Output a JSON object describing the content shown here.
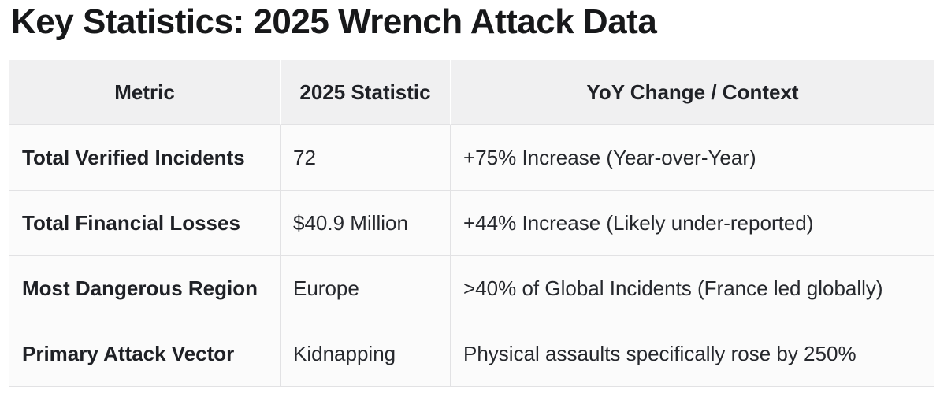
{
  "page": {
    "title": "Key Statistics: 2025 Wrench Attack Data"
  },
  "colors": {
    "page_bg": "#ffffff",
    "header_bg": "#f0f0f1",
    "row_bg": "#fbfbfb",
    "border": "#e2e2e4",
    "text_dark": "#1f2126"
  },
  "table": {
    "columns": [
      "Metric",
      "2025 Statistic",
      "YoY Change / Context"
    ],
    "rows": [
      {
        "metric": "Total Verified Incidents",
        "statistic": "72",
        "context": "+75% Increase (Year-over-Year)"
      },
      {
        "metric": "Total Financial Losses",
        "statistic": "$40.9 Million",
        "context": "+44% Increase (Likely under-reported)"
      },
      {
        "metric": "Most Dangerous Region",
        "statistic": "Europe",
        "context": ">40% of Global Incidents (France led globally)"
      },
      {
        "metric": "Primary Attack Vector",
        "statistic": "Kidnapping",
        "context": "Physical assaults specifically rose by 250%"
      }
    ]
  },
  "chart_data": {
    "type": "table",
    "title": "Key Statistics: 2025 Wrench Attack Data",
    "columns": [
      "Metric",
      "2025 Statistic",
      "YoY Change / Context"
    ],
    "rows": [
      [
        "Total Verified Incidents",
        "72",
        "+75% Increase (Year-over-Year)"
      ],
      [
        "Total Financial Losses",
        "$40.9 Million",
        "+44% Increase (Likely under-reported)"
      ],
      [
        "Most Dangerous Region",
        "Europe",
        ">40% of Global Incidents (France led globally)"
      ],
      [
        "Primary Attack Vector",
        "Kidnapping",
        "Physical assaults specifically rose by 250%"
      ]
    ]
  }
}
